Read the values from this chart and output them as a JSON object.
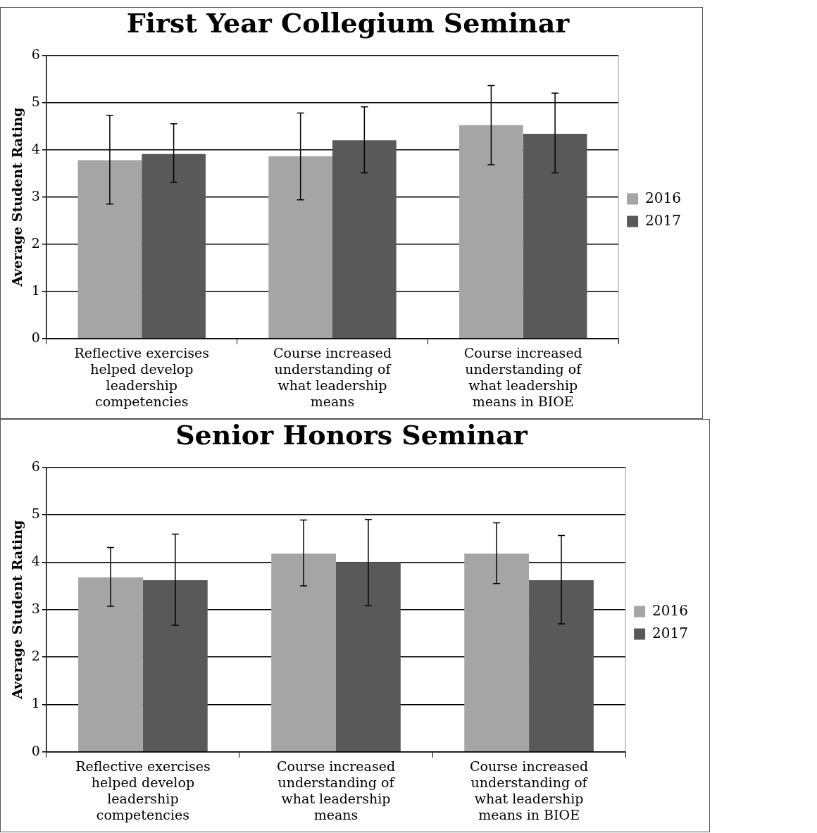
{
  "chart_data": [
    {
      "type": "bar",
      "title": "First Year Collegium Seminar",
      "ylabel": "Average Student Rating",
      "categories": [
        "Reflective exercises helped develop leadership competencies",
        "Course increased understanding of what leadership means",
        "Course increased understanding of what leadership means in BIOE"
      ],
      "series": [
        {
          "name": "2016",
          "color": "#a5a5a5",
          "values": [
            3.78,
            3.86,
            4.52
          ],
          "errors": [
            [
              2.85,
              4.73
            ],
            [
              2.94,
              4.78
            ],
            [
              3.68,
              5.36
            ]
          ]
        },
        {
          "name": "2017",
          "color": "#595959",
          "values": [
            3.91,
            4.2,
            4.34
          ],
          "errors": [
            [
              3.31,
              4.55
            ],
            [
              3.51,
              4.91
            ],
            [
              3.51,
              5.2
            ]
          ]
        }
      ],
      "ylim": [
        0,
        6
      ],
      "yticks": [
        0,
        1,
        2,
        3,
        4,
        5,
        6
      ],
      "grid": "y",
      "legend": "right"
    },
    {
      "type": "bar",
      "title": "Senior Honors Seminar",
      "ylabel": "Average Student Rating",
      "categories": [
        "Reflective exercises helped develop leadership competencies",
        "Course increased understanding of what leadership means",
        "Course increased understanding of what leadership means in BIOE"
      ],
      "series": [
        {
          "name": "2016",
          "color": "#a5a5a5",
          "values": [
            3.68,
            4.18,
            4.18
          ],
          "errors": [
            [
              3.07,
              4.31
            ],
            [
              3.5,
              4.89
            ],
            [
              3.55,
              4.83
            ]
          ]
        },
        {
          "name": "2017",
          "color": "#595959",
          "values": [
            3.62,
            4.0,
            3.62
          ],
          "errors": [
            [
              2.67,
              4.59
            ],
            [
              3.08,
              4.9
            ],
            [
              2.7,
              4.56
            ]
          ]
        }
      ],
      "ylim": [
        0,
        6
      ],
      "yticks": [
        0,
        1,
        2,
        3,
        4,
        5,
        6
      ],
      "grid": "y",
      "legend": "right"
    }
  ]
}
